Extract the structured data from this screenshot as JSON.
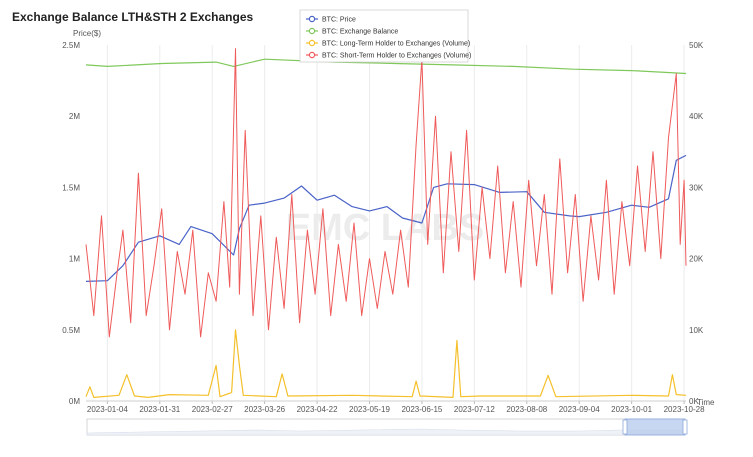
{
  "chart_data": {
    "type": "line",
    "title": "Exchange Balance LTH&STH 2 Exchanges",
    "watermark": "EMC LABS",
    "left_axis": {
      "label": "Price($)",
      "ticks": [
        "0M",
        "0.5M",
        "1M",
        "1.5M",
        "2M",
        "2.5M"
      ],
      "ylim": [
        0,
        2500000
      ]
    },
    "right_axis": {
      "label": "",
      "ticks": [
        "0K",
        "10K",
        "20K",
        "30K",
        "40K",
        "50K"
      ],
      "ylim": [
        0,
        50000
      ]
    },
    "x_axis": {
      "label": "Time",
      "ticks": [
        "2023-01-04",
        "2023-01-31",
        "2023-02-27",
        "2023-03-26",
        "2023-04-22",
        "2023-05-19",
        "2023-06-15",
        "2023-07-12",
        "2023-08-08",
        "2023-09-04",
        "2023-10-01",
        "2023-10-28"
      ],
      "range": [
        "2022-12-24",
        "2023-10-29"
      ]
    },
    "grid": "vertical",
    "legend_position": "top-center",
    "series": [
      {
        "name": "BTC: Price",
        "color": "#4a63c8",
        "axis": "right",
        "x": [
          "2022-12-24",
          "2023-01-04",
          "2023-01-12",
          "2023-01-20",
          "2023-01-31",
          "2023-02-10",
          "2023-02-16",
          "2023-02-27",
          "2023-03-10",
          "2023-03-13",
          "2023-03-18",
          "2023-03-26",
          "2023-04-05",
          "2023-04-14",
          "2023-04-22",
          "2023-05-01",
          "2023-05-10",
          "2023-05-19",
          "2023-05-28",
          "2023-06-05",
          "2023-06-15",
          "2023-06-21",
          "2023-06-28",
          "2023-07-12",
          "2023-07-25",
          "2023-08-08",
          "2023-08-17",
          "2023-08-30",
          "2023-09-04",
          "2023-09-18",
          "2023-10-01",
          "2023-10-10",
          "2023-10-20",
          "2023-10-24",
          "2023-10-29"
        ],
        "values": [
          16800,
          16900,
          19000,
          22300,
          23200,
          22000,
          24500,
          23500,
          20500,
          24200,
          27500,
          27800,
          28500,
          30200,
          28200,
          28900,
          27300,
          26700,
          27300,
          25700,
          25000,
          30000,
          30500,
          30400,
          29300,
          29400,
          26500,
          26000,
          25900,
          26500,
          27500,
          27200,
          28400,
          33800,
          34500
        ]
      },
      {
        "name": "BTC: Exchange Balance",
        "color": "#7fc85a",
        "axis": "left",
        "x": [
          "2022-12-24",
          "2023-01-04",
          "2023-02-01",
          "2023-03-01",
          "2023-03-10",
          "2023-03-26",
          "2023-05-01",
          "2023-06-01",
          "2023-07-01",
          "2023-08-01",
          "2023-09-01",
          "2023-10-01",
          "2023-10-29"
        ],
        "values": [
          2360000,
          2350000,
          2370000,
          2380000,
          2350000,
          2400000,
          2380000,
          2370000,
          2360000,
          2350000,
          2330000,
          2320000,
          2300000
        ]
      },
      {
        "name": "BTC: Long-Term Holder to Exchanges (Volume)",
        "color": "#f5c02b",
        "axis": "right",
        "x": [
          "2022-12-24",
          "2022-12-26",
          "2022-12-28",
          "2023-01-10",
          "2023-01-14",
          "2023-01-18",
          "2023-01-25",
          "2023-02-05",
          "2023-02-25",
          "2023-03-01",
          "2023-03-03",
          "2023-03-09",
          "2023-03-11",
          "2023-03-13",
          "2023-03-15",
          "2023-04-01",
          "2023-04-04",
          "2023-04-07",
          "2023-05-10",
          "2023-06-10",
          "2023-06-12",
          "2023-06-14",
          "2023-07-01",
          "2023-07-03",
          "2023-07-05",
          "2023-07-15",
          "2023-08-15",
          "2023-08-19",
          "2023-08-23",
          "2023-10-01",
          "2023-10-20",
          "2023-10-22",
          "2023-10-24",
          "2023-10-29"
        ],
        "values": [
          600,
          2000,
          500,
          800,
          3700,
          700,
          500,
          900,
          800,
          5000,
          600,
          1200,
          10000,
          5000,
          800,
          600,
          3800,
          700,
          800,
          600,
          2800,
          700,
          500,
          8500,
          600,
          700,
          700,
          3600,
          600,
          800,
          700,
          3700,
          900,
          800
        ]
      },
      {
        "name": "BTC: Short-Term Holder to Exchanges (Volume)",
        "color": "#ef5a5a",
        "axis": "right",
        "x": [
          "2022-12-24",
          "2022-12-28",
          "2023-01-01",
          "2023-01-05",
          "2023-01-09",
          "2023-01-12",
          "2023-01-16",
          "2023-01-20",
          "2023-01-24",
          "2023-01-28",
          "2023-02-01",
          "2023-02-05",
          "2023-02-09",
          "2023-02-13",
          "2023-02-17",
          "2023-02-21",
          "2023-02-25",
          "2023-03-01",
          "2023-03-05",
          "2023-03-08",
          "2023-03-11",
          "2023-03-13",
          "2023-03-16",
          "2023-03-20",
          "2023-03-24",
          "2023-03-28",
          "2023-04-01",
          "2023-04-05",
          "2023-04-09",
          "2023-04-13",
          "2023-04-17",
          "2023-04-21",
          "2023-04-25",
          "2023-04-29",
          "2023-05-03",
          "2023-05-07",
          "2023-05-11",
          "2023-05-15",
          "2023-05-19",
          "2023-05-23",
          "2023-05-27",
          "2023-05-31",
          "2023-06-04",
          "2023-06-08",
          "2023-06-12",
          "2023-06-15",
          "2023-06-18",
          "2023-06-22",
          "2023-06-26",
          "2023-06-30",
          "2023-07-04",
          "2023-07-08",
          "2023-07-12",
          "2023-07-16",
          "2023-07-20",
          "2023-07-24",
          "2023-07-28",
          "2023-08-01",
          "2023-08-05",
          "2023-08-09",
          "2023-08-13",
          "2023-08-17",
          "2023-08-21",
          "2023-08-25",
          "2023-08-29",
          "2023-09-02",
          "2023-09-06",
          "2023-09-10",
          "2023-09-14",
          "2023-09-18",
          "2023-09-22",
          "2023-09-26",
          "2023-09-30",
          "2023-10-04",
          "2023-10-08",
          "2023-10-12",
          "2023-10-16",
          "2023-10-20",
          "2023-10-24",
          "2023-10-26",
          "2023-10-28",
          "2023-10-29"
        ],
        "values": [
          22000,
          12000,
          26000,
          9000,
          18000,
          24000,
          11000,
          32000,
          12000,
          19000,
          27000,
          10000,
          21000,
          15000,
          24000,
          9000,
          18000,
          14000,
          28000,
          16000,
          49500,
          15000,
          38000,
          12000,
          26000,
          10000,
          23000,
          13000,
          29000,
          11000,
          24000,
          15000,
          27000,
          12000,
          22000,
          14000,
          25000,
          12000,
          20000,
          13000,
          21000,
          15000,
          24000,
          16000,
          36000,
          48000,
          22000,
          40000,
          18000,
          35000,
          21000,
          38000,
          17000,
          30000,
          20000,
          33000,
          18000,
          28000,
          16000,
          31000,
          19000,
          29000,
          15000,
          34000,
          18000,
          29000,
          14000,
          26000,
          17000,
          31000,
          15000,
          28000,
          19000,
          33000,
          21000,
          35000,
          20000,
          37000,
          46000,
          22000,
          31000,
          19000
        ]
      }
    ]
  },
  "zoom": {
    "window_start": "2023-09-28",
    "window_end": "2023-10-29"
  }
}
